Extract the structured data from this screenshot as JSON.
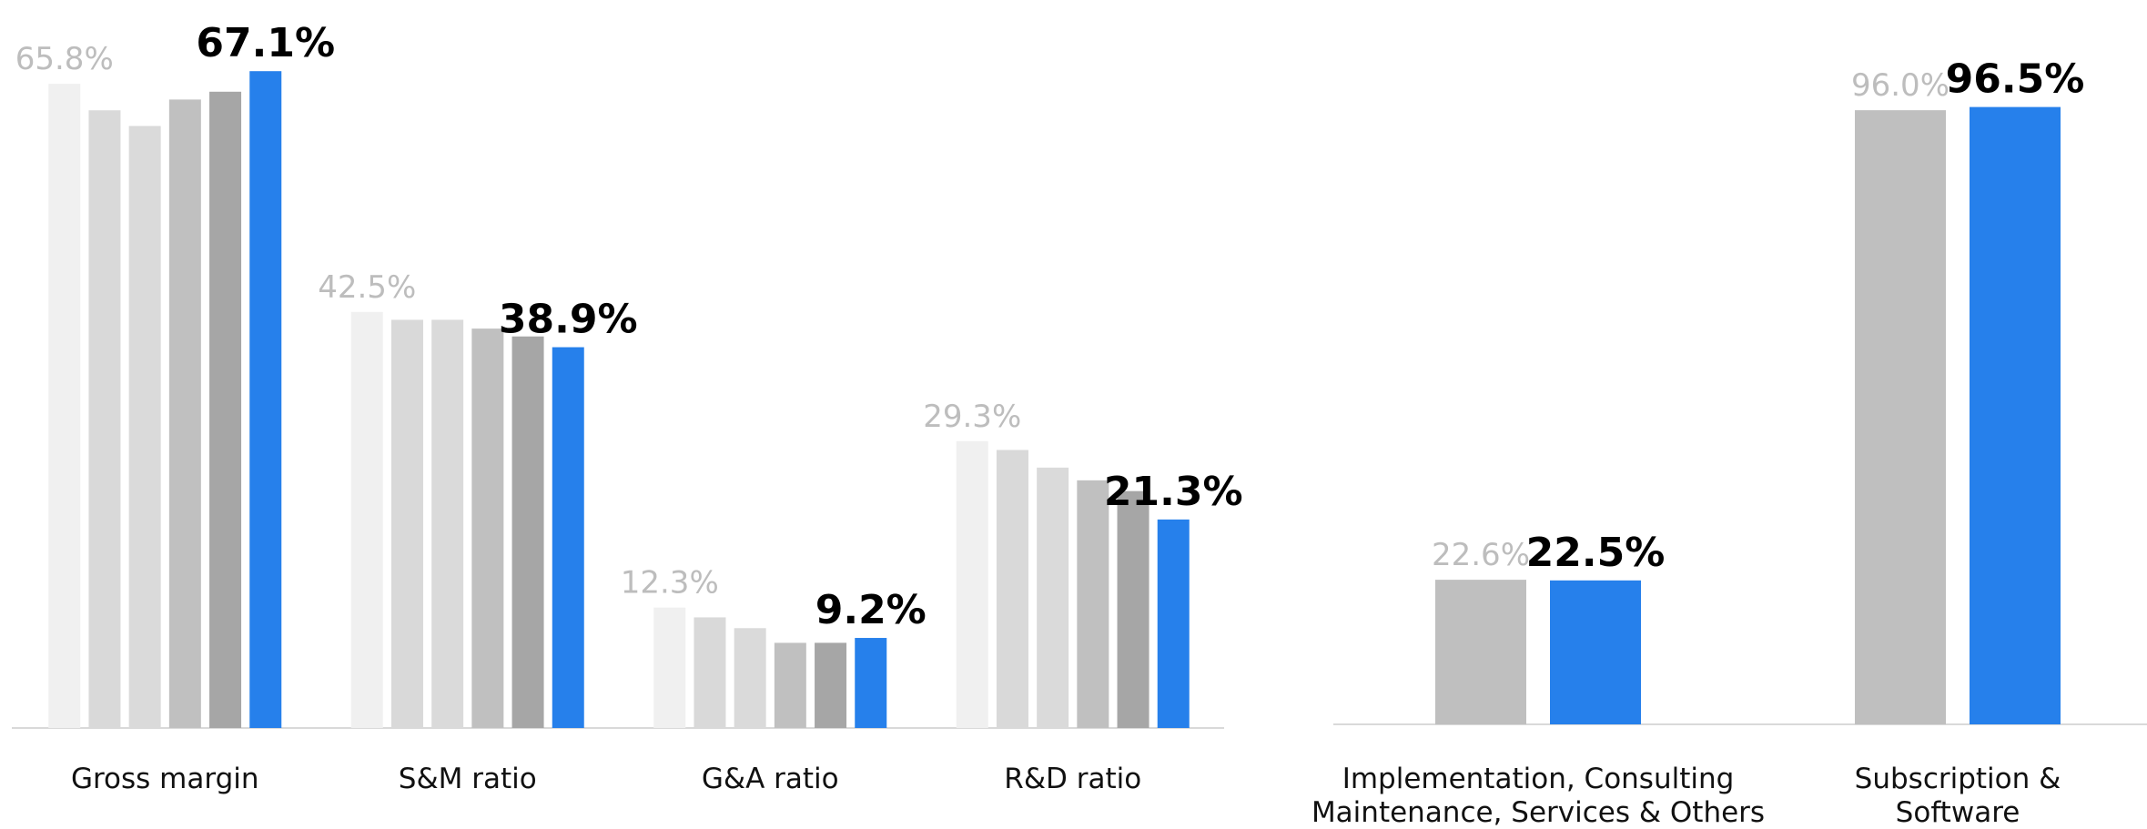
{
  "chart_data": [
    {
      "type": "bar",
      "categories": [
        "Gross margin",
        "S&M ratio",
        "G&A ratio",
        "R&D ratio"
      ],
      "ylim": [
        0,
        70
      ],
      "series": [
        {
          "color": "#f0f0f0",
          "values": [
            65.8,
            42.5,
            12.3,
            29.3
          ],
          "value_labels": [
            "65.8%",
            "42.5%",
            "12.3%",
            "29.3%"
          ]
        },
        {
          "color": "#d9d9d9",
          "values": [
            63.1,
            41.7,
            11.3,
            28.4
          ]
        },
        {
          "color": "#dadada",
          "values": [
            61.5,
            41.7,
            10.2,
            26.6
          ]
        },
        {
          "color": "#c0c0c0",
          "values": [
            64.2,
            40.8,
            8.7,
            25.3
          ]
        },
        {
          "color": "#a6a6a6",
          "values": [
            65.0,
            40.0,
            8.7,
            24.2
          ]
        },
        {
          "color": "#2680eb",
          "values": [
            67.1,
            38.9,
            9.2,
            21.3
          ],
          "value_labels": [
            "67.1%",
            "38.9%",
            "9.2%",
            "21.3%"
          ]
        }
      ]
    },
    {
      "type": "bar",
      "categories": [
        [
          "Implementation, Consulting",
          "Maintenance, Services & Others"
        ],
        [
          "Subscription &",
          "Software"
        ]
      ],
      "ylim": [
        0,
        100
      ],
      "series": [
        {
          "color": "#bfbfbf",
          "values": [
            22.6,
            96.0
          ],
          "value_labels": [
            "22.6%",
            "96.0%"
          ]
        },
        {
          "color": "#2680eb",
          "values": [
            22.5,
            96.5
          ],
          "value_labels": [
            "22.5%",
            "96.5%"
          ]
        }
      ]
    }
  ]
}
